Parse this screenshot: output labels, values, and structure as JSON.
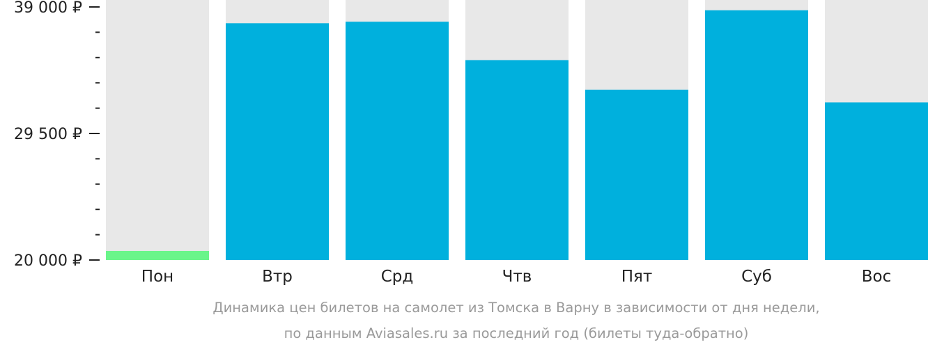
{
  "chart_data": {
    "type": "bar",
    "categories": [
      "Пон",
      "Втр",
      "Срд",
      "Чтв",
      "Пят",
      "Суб",
      "Вос"
    ],
    "values": [
      20680,
      37780,
      37890,
      35010,
      32790,
      38750,
      31830
    ],
    "ylim": [
      20000,
      39000
    ],
    "yticks": [
      {
        "value": 39000,
        "label": "39 000 ₽"
      },
      {
        "value": 29500,
        "label": "29 500 ₽"
      },
      {
        "value": 20000,
        "label": "20 000 ₽"
      }
    ],
    "minor_tick_step": 1900,
    "colors": {
      "bar": "#00b0dd",
      "bar_min": "#6af58a",
      "background_column": "#e8e8e8",
      "axis": "#222222"
    },
    "highlight_index": 0,
    "grid": false,
    "legend": "none"
  },
  "caption": {
    "line1": "Динамика цен билетов на самолет из Томска в Варну в зависимости от дня недели,",
    "line2": "по данным Aviasales.ru за последний год (билеты туда-обратно)"
  }
}
